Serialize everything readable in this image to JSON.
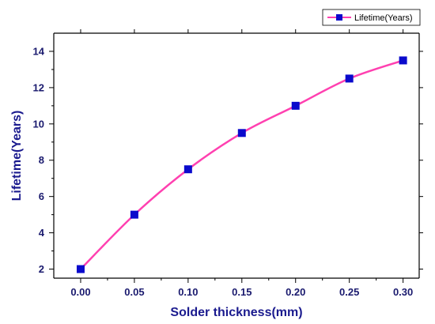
{
  "chart_data": {
    "type": "line",
    "title": "",
    "xlabel": "Solder thickness(mm)",
    "ylabel": "Lifetime(Years)",
    "xlim": [
      -0.025,
      0.315
    ],
    "ylim": [
      1.5,
      15.0
    ],
    "x_ticks": [
      "0.00",
      "0.05",
      "0.10",
      "0.15",
      "0.20",
      "0.25",
      "0.30"
    ],
    "y_ticks": [
      "2",
      "4",
      "6",
      "8",
      "10",
      "12",
      "14"
    ],
    "series": [
      {
        "name": "Lifetime(Years)",
        "x": [
          0.0,
          0.05,
          0.1,
          0.15,
          0.2,
          0.25,
          0.3
        ],
        "y": [
          2.0,
          5.0,
          7.5,
          9.5,
          11.0,
          12.5,
          13.5
        ],
        "line_color": "#ff40b0",
        "marker_color": "#0a0acc",
        "marker": "square"
      }
    ],
    "legend_position": "top-right",
    "grid": false
  }
}
